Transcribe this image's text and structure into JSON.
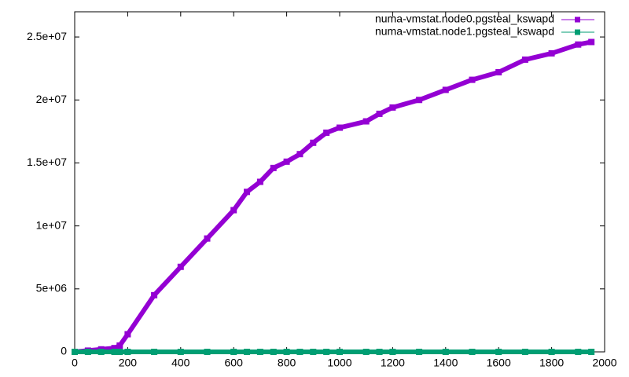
{
  "chart_data": {
    "type": "line",
    "x": [
      0,
      50,
      100,
      150,
      170,
      200,
      300,
      400,
      500,
      600,
      650,
      700,
      750,
      800,
      850,
      900,
      950,
      1000,
      1100,
      1150,
      1200,
      1300,
      1400,
      1500,
      1600,
      1700,
      1800,
      1900,
      1950
    ],
    "series": [
      {
        "name": "numa-vmstat.node0.pgsteal_kswapd",
        "color": "#9400d3",
        "values": [
          0,
          100000,
          200000,
          300000,
          500000,
          1400000,
          4500000,
          6750000,
          9000000,
          11250000,
          12700000,
          13500000,
          14600000,
          15100000,
          15700000,
          16600000,
          17400000,
          17800000,
          18300000,
          18900000,
          19400000,
          20000000,
          20800000,
          21600000,
          22200000,
          23200000,
          23700000,
          24400000,
          24600000
        ]
      },
      {
        "name": "numa-vmstat.node1.pgsteal_kswapd",
        "color": "#009e73",
        "values": [
          0,
          0,
          0,
          0,
          0,
          0,
          0,
          0,
          0,
          0,
          0,
          0,
          0,
          0,
          0,
          0,
          0,
          0,
          0,
          0,
          0,
          0,
          0,
          0,
          0,
          0,
          0,
          0,
          0
        ]
      }
    ],
    "xlim": [
      0,
      2000
    ],
    "xticks": [
      0,
      200,
      400,
      600,
      800,
      1000,
      1200,
      1400,
      1600,
      1800,
      2000
    ],
    "ylim": [
      0,
      27000000
    ],
    "yticks": [
      0,
      {
        "value": 5000000,
        "label": "5e+06"
      },
      {
        "value": 10000000,
        "label": "1e+07"
      },
      {
        "value": 15000000,
        "label": "1.5e+07"
      },
      {
        "value": 20000000,
        "label": "2e+07"
      },
      {
        "value": 25000000,
        "label": "2.5e+07"
      }
    ],
    "legend": "top-right"
  }
}
